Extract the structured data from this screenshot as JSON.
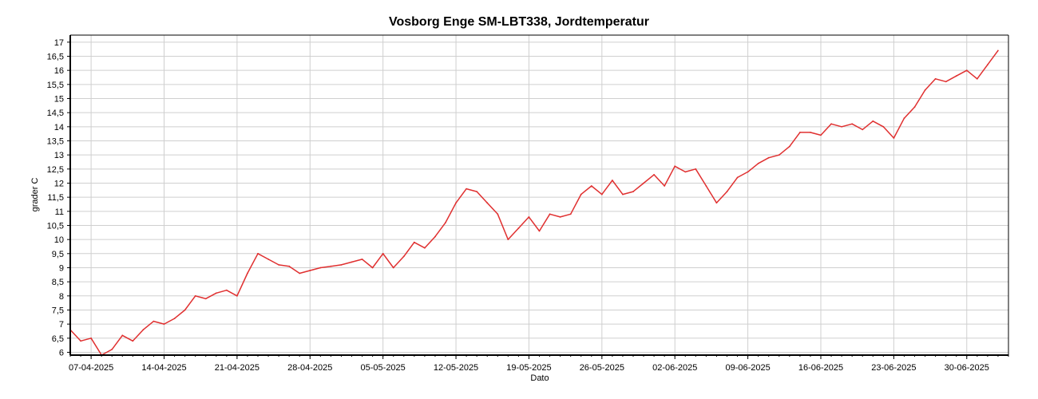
{
  "chart_data": {
    "type": "line",
    "title": "Vosborg Enge SM-LBT338, Jordtemperatur",
    "xlabel": "Dato",
    "ylabel": "grader C",
    "ylim": [
      5.9,
      17.25
    ],
    "xlim": [
      "2025-04-05",
      "2025-07-04"
    ],
    "grid": true,
    "line_color": "#e03030",
    "x_ticks": [
      "07-04-2025",
      "14-04-2025",
      "21-04-2025",
      "28-04-2025",
      "05-05-2025",
      "12-05-2025",
      "19-05-2025",
      "26-05-2025",
      "02-06-2025",
      "09-06-2025",
      "16-06-2025",
      "23-06-2025",
      "30-06-2025"
    ],
    "y_ticks": [
      "6",
      "6,5",
      "7",
      "7,5",
      "8",
      "8,5",
      "9",
      "9,5",
      "10",
      "10,5",
      "11",
      "11,5",
      "12",
      "12,5",
      "13",
      "13,5",
      "14",
      "14,5",
      "15",
      "15,5",
      "16",
      "16,5",
      "17"
    ],
    "series": [
      {
        "x": [
          "2025-04-05",
          "2025-04-06",
          "2025-04-07",
          "2025-04-08",
          "2025-04-09",
          "2025-04-10",
          "2025-04-11",
          "2025-04-12",
          "2025-04-13",
          "2025-04-14",
          "2025-04-15",
          "2025-04-16",
          "2025-04-17",
          "2025-04-18",
          "2025-04-19",
          "2025-04-20",
          "2025-04-21",
          "2025-04-22",
          "2025-04-23",
          "2025-04-24",
          "2025-04-25",
          "2025-04-26",
          "2025-04-27",
          "2025-04-28",
          "2025-04-29",
          "2025-04-30",
          "2025-05-01",
          "2025-05-02",
          "2025-05-03",
          "2025-05-04",
          "2025-05-05",
          "2025-05-06",
          "2025-05-07",
          "2025-05-08",
          "2025-05-09",
          "2025-05-10",
          "2025-05-11",
          "2025-05-12",
          "2025-05-13",
          "2025-05-14",
          "2025-05-15",
          "2025-05-16",
          "2025-05-17",
          "2025-05-18",
          "2025-05-19",
          "2025-05-20",
          "2025-05-21",
          "2025-05-22",
          "2025-05-23",
          "2025-05-24",
          "2025-05-25",
          "2025-05-26",
          "2025-05-27",
          "2025-05-28",
          "2025-05-29",
          "2025-05-30",
          "2025-05-31",
          "2025-06-01",
          "2025-06-02",
          "2025-06-03",
          "2025-06-04",
          "2025-06-05",
          "2025-06-06",
          "2025-06-07",
          "2025-06-08",
          "2025-06-09",
          "2025-06-10",
          "2025-06-11",
          "2025-06-12",
          "2025-06-13",
          "2025-06-14",
          "2025-06-15",
          "2025-06-16",
          "2025-06-17",
          "2025-06-18",
          "2025-06-19",
          "2025-06-20",
          "2025-06-21",
          "2025-06-22",
          "2025-06-23",
          "2025-06-24",
          "2025-06-25",
          "2025-06-26",
          "2025-06-27",
          "2025-06-28",
          "2025-06-29",
          "2025-06-30",
          "2025-07-01",
          "2025-07-02",
          "2025-07-03"
        ],
        "values": [
          6.8,
          6.4,
          6.5,
          5.9,
          6.1,
          6.6,
          6.4,
          6.8,
          7.1,
          7.0,
          7.2,
          7.5,
          8.0,
          7.9,
          8.1,
          8.2,
          8.0,
          8.8,
          9.5,
          9.3,
          9.1,
          9.05,
          8.8,
          8.9,
          9.0,
          9.05,
          9.1,
          9.2,
          9.3,
          9.0,
          9.5,
          9.0,
          9.4,
          9.9,
          9.7,
          10.1,
          10.6,
          11.3,
          11.8,
          11.7,
          11.3,
          10.9,
          10.0,
          10.4,
          10.8,
          10.3,
          10.9,
          10.8,
          10.9,
          11.6,
          11.9,
          11.6,
          12.1,
          11.6,
          11.7,
          12.0,
          12.3,
          11.9,
          12.6,
          12.4,
          12.5,
          11.9,
          11.3,
          11.7,
          12.2,
          12.4,
          12.7,
          12.9,
          13.0,
          13.3,
          13.8,
          13.8,
          13.7,
          14.1,
          14.0,
          14.1,
          13.9,
          14.2,
          14.0,
          13.6,
          14.3,
          14.7,
          15.3,
          15.7,
          15.6,
          15.8,
          16.0,
          15.7,
          16.2,
          16.7
        ],
        "label": ""
      }
    ]
  }
}
